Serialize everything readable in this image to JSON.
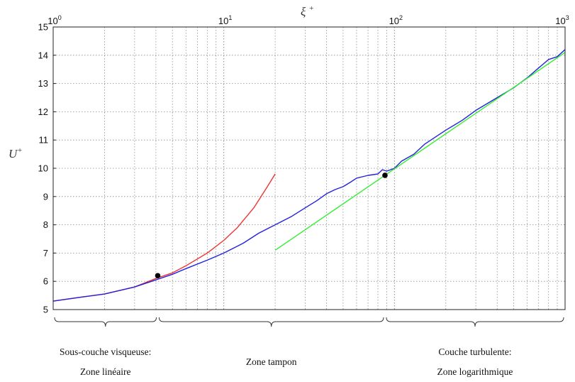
{
  "chart_data": {
    "type": "line",
    "title": "",
    "xlabel": "ξ+",
    "ylabel": "U+",
    "xscale": "log",
    "xlim": [
      1,
      1000
    ],
    "ylim": [
      5,
      15
    ],
    "grid": true,
    "x_ticks": [
      {
        "base": "10",
        "exp": "0",
        "value": 1
      },
      {
        "base": "10",
        "exp": "1",
        "value": 10
      },
      {
        "base": "10",
        "exp": "2",
        "value": 100
      },
      {
        "base": "10",
        "exp": "3",
        "value": 1000
      }
    ],
    "y_ticks": [
      "5",
      "6",
      "7",
      "8",
      "9",
      "10",
      "11",
      "12",
      "13",
      "14",
      "15"
    ],
    "series": [
      {
        "color": "#ee3333",
        "x": [
          1,
          1.5,
          2,
          3,
          4,
          5,
          6,
          8,
          10,
          12,
          15,
          18,
          20
        ],
        "y": [
          5.3,
          5.45,
          5.55,
          5.8,
          6.1,
          6.3,
          6.55,
          7.0,
          7.45,
          7.9,
          8.6,
          9.35,
          9.8
        ]
      },
      {
        "color": "#2222dd",
        "x": [
          1,
          1.5,
          2,
          3,
          4,
          5,
          6,
          8,
          10,
          13,
          16,
          20,
          25,
          30,
          35,
          40,
          45,
          50,
          55,
          60,
          70,
          80,
          85,
          90,
          95,
          100,
          110,
          130,
          150,
          200,
          250,
          300,
          400,
          500,
          600,
          700,
          800,
          900,
          1000
        ],
        "y": [
          5.3,
          5.45,
          5.55,
          5.8,
          6.05,
          6.25,
          6.45,
          6.75,
          7.0,
          7.35,
          7.7,
          8.0,
          8.3,
          8.6,
          8.85,
          9.1,
          9.25,
          9.35,
          9.5,
          9.65,
          9.75,
          9.8,
          9.95,
          9.9,
          9.95,
          10.0,
          10.25,
          10.5,
          10.85,
          11.35,
          11.7,
          12.05,
          12.5,
          12.85,
          13.2,
          13.55,
          13.85,
          13.95,
          14.2
        ]
      },
      {
        "color": "#33ee33",
        "x": [
          20,
          1000
        ],
        "y": [
          7.1,
          14.1
        ]
      }
    ],
    "points": [
      {
        "x": 4.1,
        "y": 6.2
      },
      {
        "x": 88,
        "y": 9.75
      }
    ],
    "zones": [
      {
        "x_from": 1,
        "x_to": 4.1,
        "lines": [
          "Sous-couche visqueuse:",
          "Zone linéaire"
        ]
      },
      {
        "x_from": 4.1,
        "x_to": 88,
        "lines": [
          "Zone tampon"
        ]
      },
      {
        "x_from": 88,
        "x_to": 1000,
        "lines": [
          "Couche turbulente:",
          "Zone logarithmique"
        ]
      }
    ]
  }
}
